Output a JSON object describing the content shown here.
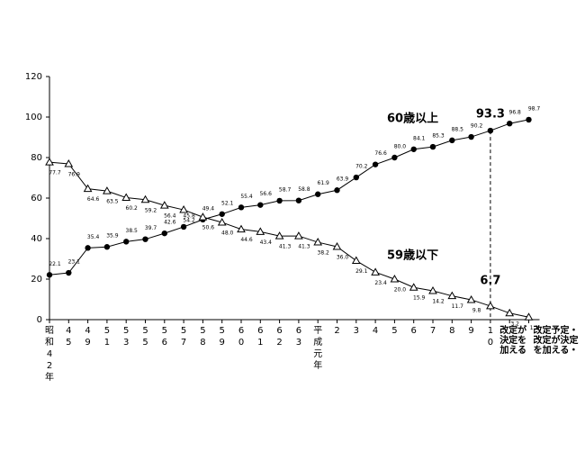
{
  "chart_data": {
    "type": "line",
    "categories": [
      "昭和42年",
      "45",
      "49",
      "51",
      "53",
      "55",
      "56",
      "57",
      "58",
      "59",
      "60",
      "61",
      "62",
      "63",
      "平成元年",
      "2",
      "3",
      "4",
      "5",
      "6",
      "7",
      "8",
      "9",
      "10",
      "改定が決定を加える",
      "改定予定・改定が決定を加える・"
    ],
    "series": [
      {
        "name": "60歳以上",
        "color": "#000000",
        "marker": "circle",
        "values": [
          22.1,
          23.1,
          35.4,
          35.9,
          38.5,
          39.7,
          42.6,
          45.8,
          49.4,
          52.1,
          55.4,
          56.6,
          58.7,
          58.8,
          61.9,
          63.9,
          70.2,
          76.6,
          80.0,
          84.1,
          85.3,
          88.5,
          90.2,
          93.3,
          96.8,
          98.7
        ],
        "value_labels": [
          "22.1",
          "23.1",
          "35.4",
          "35.9",
          "38.5",
          "39.7",
          "42.6",
          "45.8",
          "49.4",
          "52.1",
          "55.4",
          "56.6",
          "58.7",
          "58.8",
          "61.9",
          "63.9",
          "70.2",
          "76.6",
          "80.0",
          "84.1",
          "85.3",
          "88.5",
          "90.2",
          "93.3",
          "96.8",
          "98.7"
        ]
      },
      {
        "name": "59歳以下",
        "color": "#000000",
        "marker": "triangle",
        "values": [
          77.7,
          76.9,
          64.6,
          63.5,
          60.2,
          59.2,
          56.4,
          54.2,
          50.6,
          48.0,
          44.6,
          43.4,
          41.3,
          41.3,
          38.2,
          36.0,
          29.1,
          23.4,
          20.0,
          15.9,
          14.2,
          11.7,
          9.8,
          6.7,
          3.2,
          1.2
        ],
        "value_labels": [
          "77.7",
          "76.9",
          "64.6",
          "63.5",
          "60.2",
          "59.2",
          "56.4",
          "54.2",
          "50.6",
          "48.0",
          "44.6",
          "43.4",
          "41.3",
          "41.3",
          "38.2",
          "36.0",
          "29.1",
          "23.4",
          "20.0",
          "15.9",
          "14.2",
          "11.7",
          "9.8",
          "6.7",
          "3.2",
          "1.2"
        ]
      }
    ],
    "ylim": [
      0,
      120
    ],
    "yticks": [
      0,
      20,
      40,
      60,
      80,
      100,
      120
    ],
    "grid": false
  }
}
